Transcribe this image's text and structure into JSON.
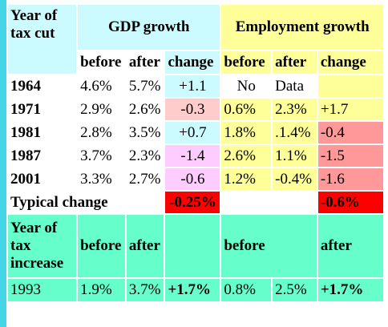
{
  "headers": {
    "year_of_tax_cut": [
      "Year of",
      "tax cut"
    ],
    "gdp_growth": "GDP growth",
    "employment_growth": "Employment growth",
    "before": "before",
    "after": "after",
    "change": "change"
  },
  "cut_rows": [
    {
      "year": "1964",
      "gdp_before": "4.6%",
      "gdp_after": "5.7%",
      "gdp_change": "+1.1",
      "emp_before": "No",
      "emp_after": "Data",
      "emp_change": ""
    },
    {
      "year": "1971",
      "gdp_before": "2.9%",
      "gdp_after": "2.6%",
      "gdp_change": "-0.3",
      "emp_before": "0.6%",
      "emp_after": "2.3%",
      "emp_change": "+1.7"
    },
    {
      "year": "1981",
      "gdp_before": "2.8%",
      "gdp_after": "3.5%",
      "gdp_change": "+0.7",
      "emp_before": "1.8%",
      "emp_after": ".1.4%",
      "emp_change": "-0.4"
    },
    {
      "year": "1987",
      "gdp_before": "3.7%",
      "gdp_after": "2.3%",
      "gdp_change": "-1.4",
      "emp_before": "2.6%",
      "emp_after": "1.1%",
      "emp_change": "-1.5"
    },
    {
      "year": "2001",
      "gdp_before": "3.3%",
      "gdp_after": "2.7%",
      "gdp_change": "-0.6",
      "emp_before": "1.2%",
      "emp_after": "-0.4%",
      "emp_change": "-1.6"
    }
  ],
  "typical": {
    "label": "Typical change",
    "gdp_change": "-0.25%",
    "emp_change": "-0.6%"
  },
  "increase_header": {
    "label": [
      "Year of",
      "tax",
      "increase"
    ],
    "gdp_before": "before",
    "gdp_after": "after",
    "emp_before": "before",
    "emp_after": "after"
  },
  "increase_row": {
    "year": "1993",
    "gdp_before": "1.9%",
    "gdp_after": "3.7%",
    "gdp_change": "+1.7%",
    "emp_before": "0.8%",
    "emp_after": "2.5%",
    "emp_change": "+1.7%"
  },
  "colors": {
    "left_bar": "#44d6e6",
    "cyan": "#ccfbff",
    "yellow": "#ffff99",
    "light_red": "#ffcccc",
    "violet": "#ffccff",
    "salmon": "#ff9999",
    "red": "#ff0000",
    "mint": "#66ffcc"
  }
}
